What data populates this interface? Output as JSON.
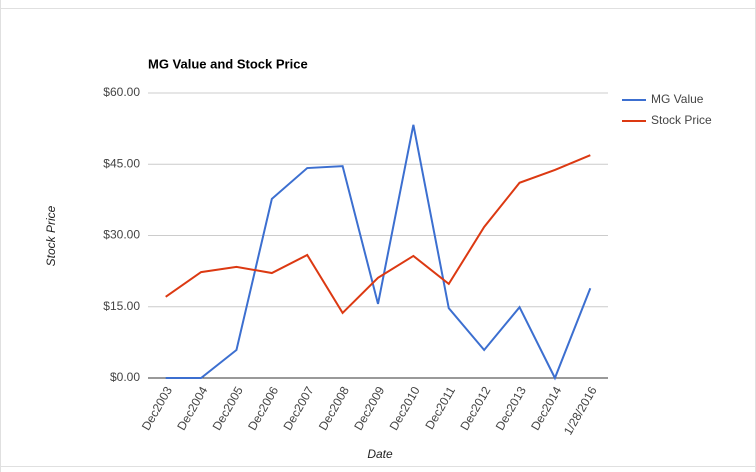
{
  "chart_data": {
    "type": "line",
    "title": "MG Value and Stock Price",
    "x_label": "Date",
    "y_label": "Stock Price",
    "categories": [
      "Dec2003",
      "Dec2004",
      "Dec2005",
      "Dec2006",
      "Dec2007",
      "Dec2008",
      "Dec2009",
      "Dec2010",
      "Dec2011",
      "Dec2012",
      "Dec2013",
      "Dec2014",
      "1/28/2016"
    ],
    "series": [
      {
        "name": "MG Value",
        "color": "#3c6fd0",
        "values": [
          0,
          0,
          5.9,
          37.7,
          44.2,
          44.6,
          15.6,
          53.3,
          14.7,
          5.9,
          14.9,
          0,
          18.9
        ]
      },
      {
        "name": "Stock Price",
        "color": "#dc3912",
        "values": [
          17.1,
          22.3,
          23.4,
          22.1,
          25.9,
          13.7,
          21.1,
          25.7,
          19.8,
          31.8,
          41.1,
          43.8,
          46.9
        ]
      }
    ],
    "ylim": [
      0,
      60
    ],
    "yticks": [
      {
        "value": 0,
        "label": "$0.00"
      },
      {
        "value": 15,
        "label": "$15.00"
      },
      {
        "value": 30,
        "label": "$30.00"
      },
      {
        "value": 45,
        "label": "$45.00"
      },
      {
        "value": 60,
        "label": "$60.00"
      }
    ],
    "grid": true,
    "legend": "right"
  }
}
